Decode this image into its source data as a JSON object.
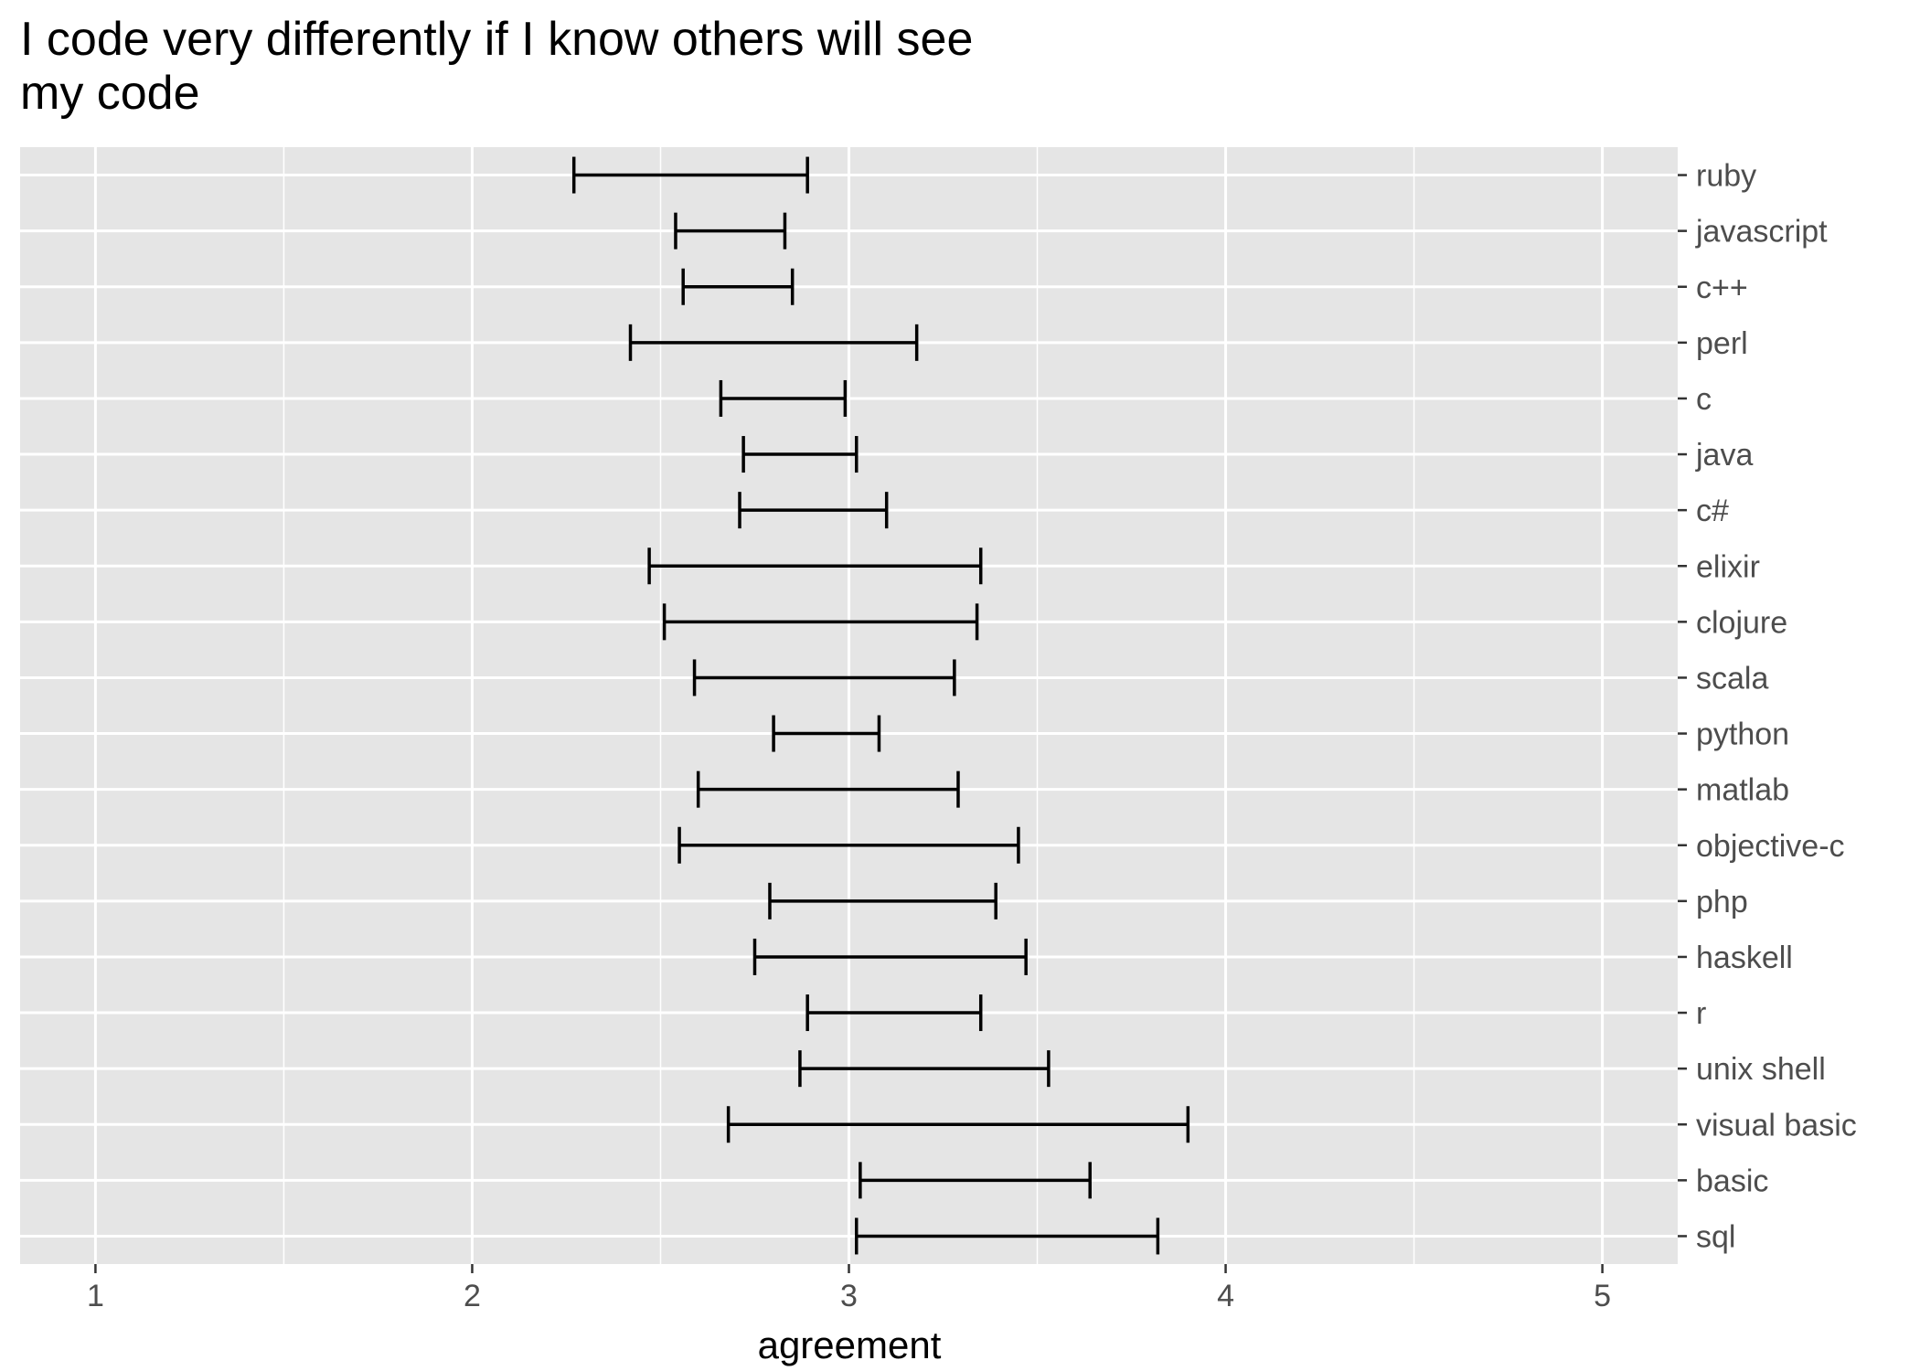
{
  "chart_data": {
    "type": "errorbar",
    "title_lines": [
      "I code very differently if I know others will see",
      "my code"
    ],
    "xlabel": "agreement",
    "ylabel": "",
    "xlim": [
      0.8,
      5.2
    ],
    "xticks": [
      1,
      2,
      3,
      4,
      5
    ],
    "grid": true,
    "categories": [
      "ruby",
      "javascript",
      "c++",
      "perl",
      "c",
      "java",
      "c#",
      "elixir",
      "clojure",
      "scala",
      "python",
      "matlab",
      "objective-c",
      "php",
      "haskell",
      "r",
      "unix shell",
      "visual basic",
      "basic",
      "sql"
    ],
    "lower": [
      2.27,
      2.54,
      2.56,
      2.42,
      2.66,
      2.72,
      2.71,
      2.47,
      2.51,
      2.59,
      2.8,
      2.6,
      2.55,
      2.79,
      2.75,
      2.89,
      2.87,
      2.68,
      3.03,
      3.02
    ],
    "upper": [
      2.89,
      2.83,
      2.85,
      3.18,
      2.99,
      3.02,
      3.1,
      3.35,
      3.34,
      3.28,
      3.08,
      3.29,
      3.45,
      3.39,
      3.47,
      3.35,
      3.53,
      3.9,
      3.64,
      3.82
    ],
    "colors": {
      "panel": "#e5e5e5",
      "grid": "#ffffff",
      "bar": "#000000",
      "tick_text": "#4d4d4d",
      "tick_mark": "#333333"
    }
  }
}
